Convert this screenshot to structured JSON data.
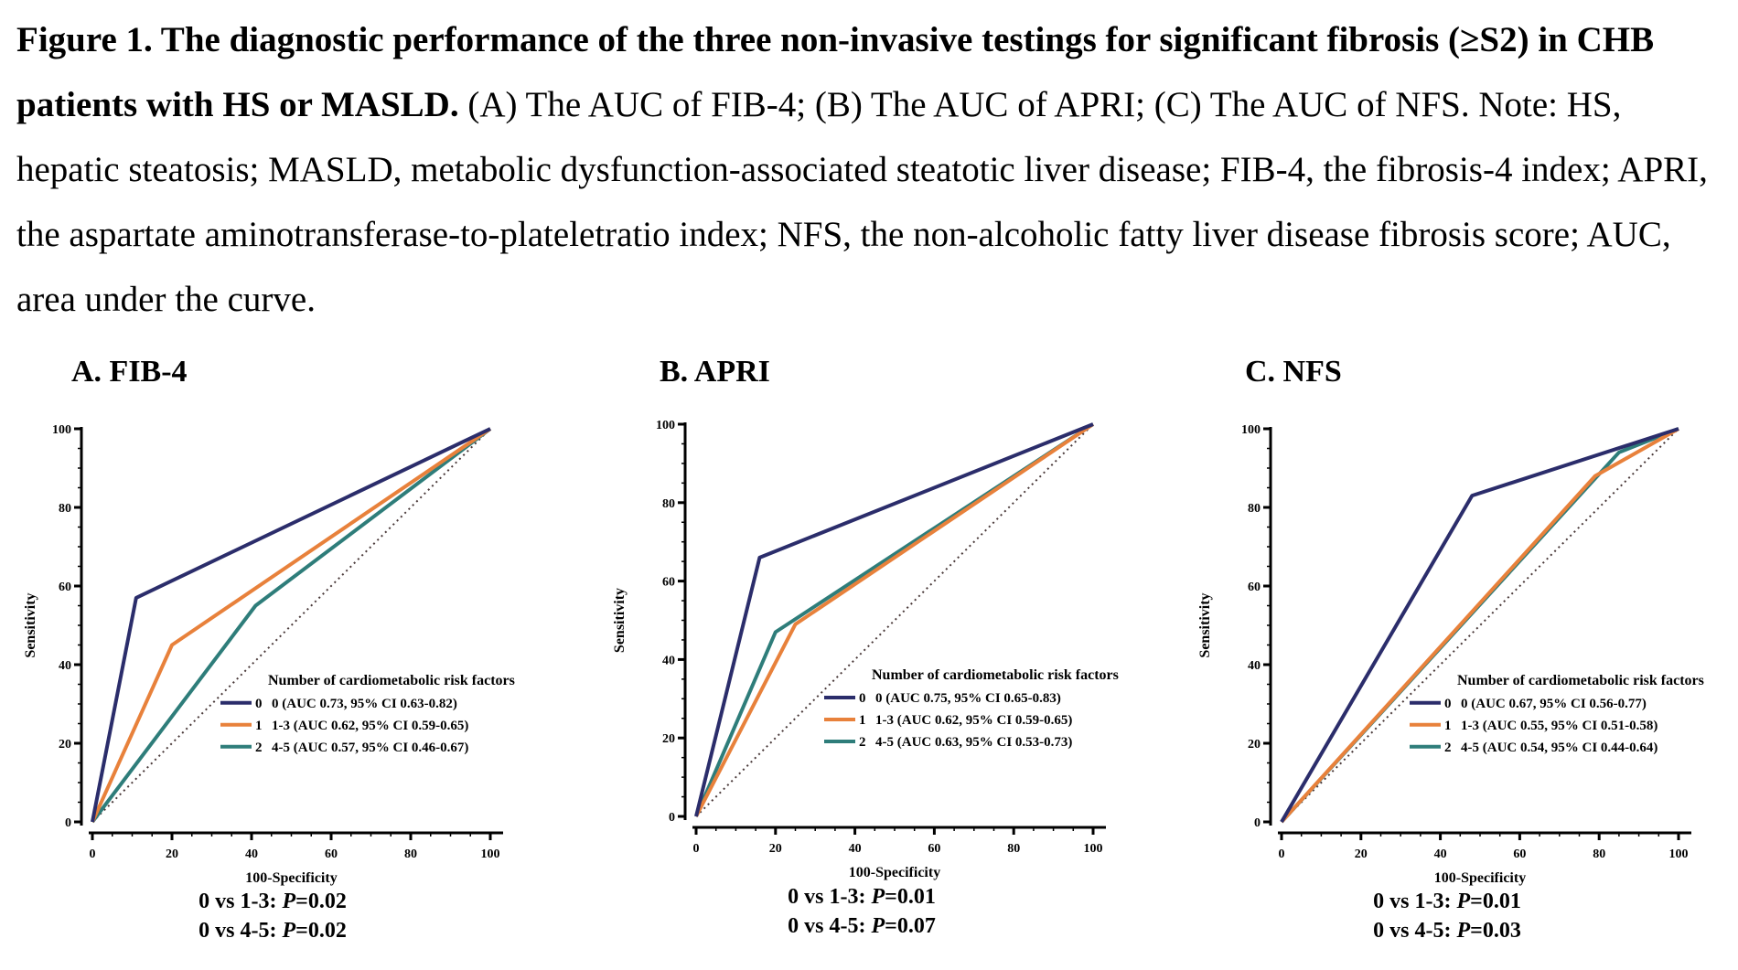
{
  "caption": {
    "title": "Figure 1. The diagnostic performance of the three non-invasive testings for significant fibrosis (≥S2) in CHB patients with HS or MASLD.",
    "body": " (A) The AUC of FIB-4; (B) The AUC of APRI; (C) The AUC of NFS. Note: HS, hepatic steatosis; MASLD, metabolic dysfunction-associated steatotic liver disease; FIB-4, the fibrosis-4 index; APRI, the aspartate aminotransferase-to-plateletratio index; NFS, the non-alcoholic fatty liver disease fibrosis score; AUC, area under the curve."
  },
  "colors": {
    "navy": "#2b2d6b",
    "orange": "#e8813b",
    "teal": "#2e7d7a",
    "reference": "#4a3a3a"
  },
  "chart_data": [
    {
      "type": "line",
      "title": "A. FIB-4",
      "xlabel": "100-Specificity",
      "ylabel": "Sensitivity",
      "xlim": [
        0,
        100
      ],
      "ylim": [
        0,
        100
      ],
      "xticks": [
        0,
        20,
        40,
        60,
        80,
        100
      ],
      "yticks": [
        0,
        20,
        40,
        60,
        80,
        100
      ],
      "legend_title": "Number of cardiometabolic risk factors",
      "legend_position": "bottom-right",
      "reference_line": true,
      "series": [
        {
          "name": "0",
          "label": "0 (AUC 0.73, 95% CI 0.63-0.82)",
          "color": "#2b2d6b",
          "x": [
            0,
            11,
            100
          ],
          "y": [
            0,
            57,
            100
          ]
        },
        {
          "name": "1",
          "label": "1-3 (AUC 0.62, 95% CI 0.59-0.65)",
          "color": "#e8813b",
          "x": [
            0,
            20,
            100
          ],
          "y": [
            0,
            45,
            100
          ]
        },
        {
          "name": "2",
          "label": "4-5 (AUC 0.57, 95% CI 0.46-0.67)",
          "color": "#2e7d7a",
          "x": [
            0,
            41,
            100
          ],
          "y": [
            0,
            55,
            100
          ]
        }
      ],
      "tests": [
        {
          "comparison": "0 vs 1-3",
          "p": "0.02"
        },
        {
          "comparison": "0 vs 4-5",
          "p": "0.02"
        }
      ]
    },
    {
      "type": "line",
      "title": "B. APRI",
      "xlabel": "100-Specificity",
      "ylabel": "Sensitivity",
      "xlim": [
        0,
        100
      ],
      "ylim": [
        0,
        100
      ],
      "xticks": [
        0,
        20,
        40,
        60,
        80,
        100
      ],
      "yticks": [
        0,
        20,
        40,
        60,
        80,
        100
      ],
      "legend_title": "Number of cardiometabolic risk factors",
      "legend_position": "bottom-right",
      "reference_line": true,
      "series": [
        {
          "name": "0",
          "label": "0 (AUC 0.75, 95% CI 0.65-0.83)",
          "color": "#2b2d6b",
          "x": [
            0,
            16,
            100
          ],
          "y": [
            0,
            66,
            100
          ]
        },
        {
          "name": "1",
          "label": "1-3 (AUC 0.62, 95% CI 0.59-0.65)",
          "color": "#e8813b",
          "x": [
            0,
            25,
            100
          ],
          "y": [
            0,
            49,
            100
          ]
        },
        {
          "name": "2",
          "label": "4-5 (AUC 0.63, 95% CI 0.53-0.73)",
          "color": "#2e7d7a",
          "x": [
            0,
            20,
            100
          ],
          "y": [
            0,
            47,
            100
          ]
        }
      ],
      "tests": [
        {
          "comparison": "0 vs 1-3",
          "p": "0.01"
        },
        {
          "comparison": "0 vs 4-5",
          "p": "0.07"
        }
      ]
    },
    {
      "type": "line",
      "title": "C. NFS",
      "xlabel": "100-Specificity",
      "ylabel": "Sensitivity",
      "xlim": [
        0,
        100
      ],
      "ylim": [
        0,
        100
      ],
      "xticks": [
        0,
        20,
        40,
        60,
        80,
        100
      ],
      "yticks": [
        0,
        20,
        40,
        60,
        80,
        100
      ],
      "legend_title": "Number of cardiometabolic risk factors",
      "legend_position": "bottom-right",
      "reference_line": true,
      "series": [
        {
          "name": "0",
          "label": "0 (AUC 0.67, 95% CI 0.56-0.77)",
          "color": "#2b2d6b",
          "x": [
            0,
            48,
            100
          ],
          "y": [
            0,
            83,
            100
          ]
        },
        {
          "name": "1",
          "label": "1-3 (AUC 0.55, 95% CI 0.51-0.58)",
          "color": "#e8813b",
          "x": [
            0,
            79,
            100
          ],
          "y": [
            0,
            88,
            100
          ]
        },
        {
          "name": "2",
          "label": "4-5 (AUC 0.54, 95% CI 0.44-0.64)",
          "color": "#2e7d7a",
          "x": [
            0,
            85,
            100
          ],
          "y": [
            0,
            94,
            100
          ]
        }
      ],
      "tests": [
        {
          "comparison": "0 vs 1-3",
          "p": "0.01"
        },
        {
          "comparison": "0 vs 4-5",
          "p": "0.03"
        }
      ]
    }
  ]
}
